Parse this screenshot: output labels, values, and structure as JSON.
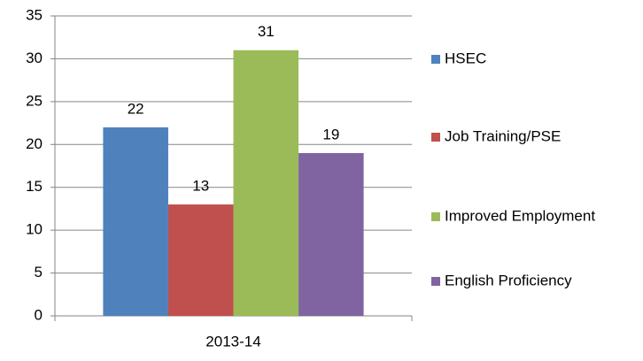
{
  "chart_data": {
    "type": "bar",
    "categories": [
      "2013-14"
    ],
    "series": [
      {
        "name": "HSEC",
        "color": "#4f81bd",
        "values": [
          22
        ]
      },
      {
        "name": "Job Training/PSE",
        "color": "#c0504d",
        "values": [
          13
        ]
      },
      {
        "name": "Improved Employment",
        "color": "#9bbb59",
        "values": [
          31
        ]
      },
      {
        "name": "English Proficiency",
        "color": "#8064a2",
        "values": [
          19
        ]
      }
    ],
    "ylim": [
      0,
      35
    ],
    "yticks": [
      0,
      5,
      10,
      15,
      20,
      25,
      30,
      35
    ],
    "grid": true,
    "legend": "right"
  }
}
